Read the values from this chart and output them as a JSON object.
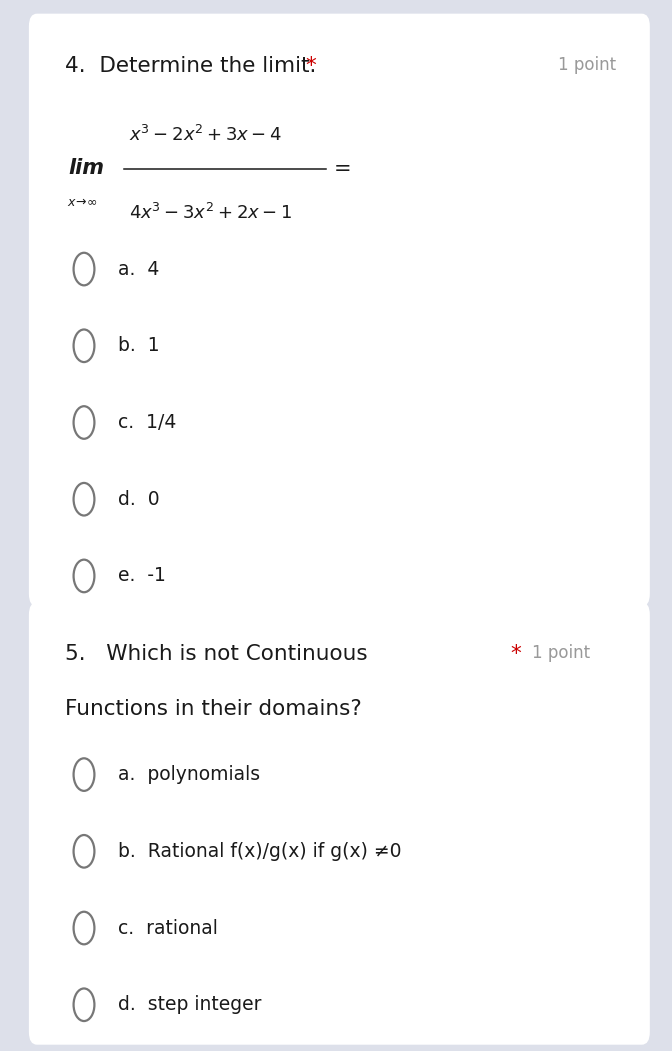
{
  "bg_outer": "#dde0ea",
  "bg_card": "#ffffff",
  "card1": {
    "options": [
      "a.  4",
      "b.  1",
      "c.  1/4",
      "d.  0",
      "e.  -1"
    ]
  },
  "card2": {
    "options": [
      "a.  polynomials",
      "b.  Rational f(x)/g(x) if g(x) ≠0",
      "c.  rational",
      "d.  step integer"
    ]
  },
  "text_color": "#1a1a1a",
  "gray_color": "#999999",
  "red_color": "#cc0000",
  "circle_color": "#777777",
  "option_fontsize": 13.5,
  "question_fontsize": 15.5,
  "points_fontsize": 12,
  "formula_fontsize": 13,
  "lim_fontsize": 15,
  "sub_fontsize": 9
}
